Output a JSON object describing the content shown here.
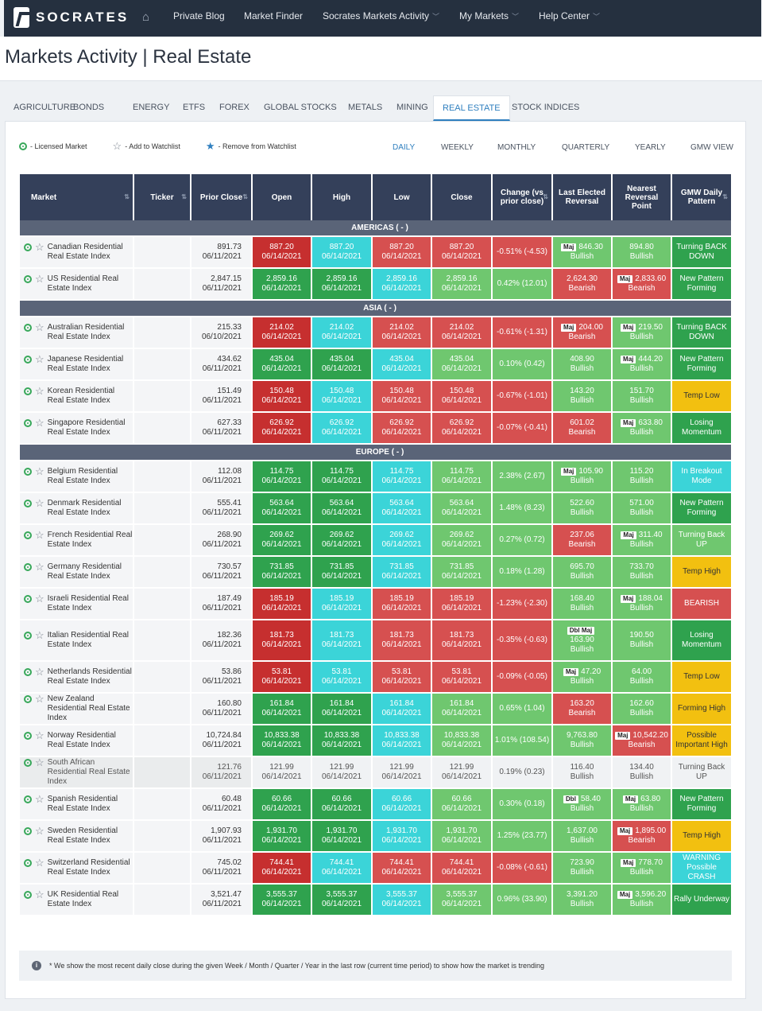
{
  "nav": {
    "brand": "SOCRATES",
    "items": [
      "Private Blog",
      "Market Finder",
      "Socrates Markets Activity",
      "My Markets",
      "Help Center"
    ]
  },
  "page_title": "Markets Activity | Real Estate",
  "tabs": [
    "AGRICULTURE",
    "BONDS",
    "ENERGY",
    "ETFS",
    "FOREX",
    "GLOBAL STOCKS",
    "METALS",
    "MINING",
    "REAL ESTATE",
    "STOCK INDICES"
  ],
  "active_tab": "REAL ESTATE",
  "legend": [
    "- Licensed Market",
    "- Add to Watchlist",
    "- Remove from Watchlist"
  ],
  "periods": [
    "DAILY",
    "WEEKLY",
    "MONTHLY",
    "QUARTERLY",
    "YEARLY",
    "GMW VIEW"
  ],
  "active_period": "DAILY",
  "columns": [
    "Market",
    "Ticker",
    "Prior Close",
    "Open",
    "High",
    "Low",
    "Close",
    "Change (vs prior close)",
    "Last Elected Reversal",
    "Nearest Reversal Point",
    "GMW Daily Pattern"
  ],
  "sections": [
    {
      "name": "AMERICAS ( - )",
      "rows": [
        {
          "m": "Canadian Residential Real Estate Index",
          "pc": "891.73",
          "pd": "06/11/2021",
          "o": [
            "887.20",
            "dr"
          ],
          "h": [
            "887.20",
            "c"
          ],
          "l": [
            "887.20",
            "r"
          ],
          "c": [
            "887.20",
            "r"
          ],
          "ch": [
            "-0.51% (-4.53)",
            "r"
          ],
          "ler": {
            "tag": "Maj",
            "v": "846.30",
            "s": "Bullish",
            "cls": "g"
          },
          "nrp": {
            "tag": "",
            "v": "894.80",
            "s": "Bullish",
            "cls": "g"
          },
          "pat": [
            "Turning BACK DOWN",
            "dg"
          ]
        },
        {
          "m": "US Residential Real Estate Index",
          "pc": "2,847.15",
          "pd": "06/11/2021",
          "o": [
            "2,859.16",
            "dg"
          ],
          "h": [
            "2,859.16",
            "dg"
          ],
          "l": [
            "2,859.16",
            "c"
          ],
          "c": [
            "2,859.16",
            "g"
          ],
          "ch": [
            "0.42% (12.01)",
            "g"
          ],
          "ler": {
            "tag": "",
            "v": "2,624.30",
            "s": "Bearish",
            "cls": "r"
          },
          "nrp": {
            "tag": "Maj",
            "v": "2,833.60",
            "s": "Bearish",
            "cls": "r"
          },
          "pat": [
            "New Pattern Forming",
            "dg"
          ]
        }
      ]
    },
    {
      "name": "ASIA ( - )",
      "rows": [
        {
          "m": "Australian Residential Real Estate Index",
          "pc": "215.33",
          "pd": "06/10/2021",
          "o": [
            "214.02",
            "dr"
          ],
          "h": [
            "214.02",
            "c"
          ],
          "l": [
            "214.02",
            "r"
          ],
          "c": [
            "214.02",
            "r"
          ],
          "ch": [
            "-0.61% (-1.31)",
            "r"
          ],
          "ler": {
            "tag": "Maj",
            "v": "204.00",
            "s": "Bearish",
            "cls": "r"
          },
          "nrp": {
            "tag": "Maj",
            "v": "219.50",
            "s": "Bullish",
            "cls": "g"
          },
          "pat": [
            "Turning BACK DOWN",
            "dg"
          ],
          "single": true
        },
        {
          "m": "Japanese Residential Real Estate Index",
          "pc": "434.62",
          "pd": "06/11/2021",
          "o": [
            "435.04",
            "dg"
          ],
          "h": [
            "435.04",
            "dg"
          ],
          "l": [
            "435.04",
            "c"
          ],
          "c": [
            "435.04",
            "g"
          ],
          "ch": [
            "0.10% (0.42)",
            "g"
          ],
          "ler": {
            "tag": "",
            "v": "408.90",
            "s": "Bullish",
            "cls": "g"
          },
          "nrp": {
            "tag": "Maj",
            "v": "444.20",
            "s": "Bullish",
            "cls": "g"
          },
          "pat": [
            "New Pattern Forming",
            "dg"
          ]
        },
        {
          "m": "Korean Residential Real Estate Index",
          "pc": "151.49",
          "pd": "06/11/2021",
          "o": [
            "150.48",
            "dr"
          ],
          "h": [
            "150.48",
            "c"
          ],
          "l": [
            "150.48",
            "r"
          ],
          "c": [
            "150.48",
            "r"
          ],
          "ch": [
            "-0.67% (-1.01)",
            "r"
          ],
          "ler": {
            "tag": "",
            "v": "143.20",
            "s": "Bullish",
            "cls": "g"
          },
          "nrp": {
            "tag": "",
            "v": "151.70",
            "s": "Bullish",
            "cls": "g"
          },
          "pat": [
            "Temp Low",
            "y"
          ]
        },
        {
          "m": "Singapore Residential Real Estate Index",
          "pc": "627.33",
          "pd": "06/11/2021",
          "o": [
            "626.92",
            "dr"
          ],
          "h": [
            "626.92",
            "c"
          ],
          "l": [
            "626.92",
            "r"
          ],
          "c": [
            "626.92",
            "r"
          ],
          "ch": [
            "-0.07% (-0.41)",
            "r"
          ],
          "ler": {
            "tag": "",
            "v": "601.02",
            "s": "Bearish",
            "cls": "r"
          },
          "nrp": {
            "tag": "Maj",
            "v": "633.80",
            "s": "Bullish",
            "cls": "g"
          },
          "pat": [
            "Losing Momentum",
            "dg"
          ]
        }
      ]
    },
    {
      "name": "EUROPE ( - )",
      "rows": [
        {
          "m": "Belgium Residential Real Estate Index",
          "pc": "112.08",
          "pd": "06/11/2021",
          "o": [
            "114.75",
            "dg"
          ],
          "h": [
            "114.75",
            "dg"
          ],
          "l": [
            "114.75",
            "c"
          ],
          "c": [
            "114.75",
            "g"
          ],
          "ch": [
            "2.38% (2.67)",
            "g"
          ],
          "ler": {
            "tag": "Maj",
            "v": "105.90",
            "s": "Bullish",
            "cls": "g"
          },
          "nrp": {
            "tag": "",
            "v": "115.20",
            "s": "Bullish",
            "cls": "g"
          },
          "pat": [
            "In Breakout Mode",
            "c"
          ]
        },
        {
          "m": "Denmark Residential Real Estate Index",
          "pc": "555.41",
          "pd": "06/11/2021",
          "o": [
            "563.64",
            "dg"
          ],
          "h": [
            "563.64",
            "dg"
          ],
          "l": [
            "563.64",
            "c"
          ],
          "c": [
            "563.64",
            "g"
          ],
          "ch": [
            "1.48% (8.23)",
            "g"
          ],
          "ler": {
            "tag": "",
            "v": "522.60",
            "s": "Bullish",
            "cls": "g"
          },
          "nrp": {
            "tag": "",
            "v": "571.00",
            "s": "Bullish",
            "cls": "g"
          },
          "pat": [
            "New Pattern Forming",
            "dg"
          ]
        },
        {
          "m": "French Residential Real Estate Index",
          "pc": "268.90",
          "pd": "06/11/2021",
          "o": [
            "269.62",
            "dg"
          ],
          "h": [
            "269.62",
            "dg"
          ],
          "l": [
            "269.62",
            "c"
          ],
          "c": [
            "269.62",
            "g"
          ],
          "ch": [
            "0.27% (0.72)",
            "g"
          ],
          "ler": {
            "tag": "",
            "v": "237.06",
            "s": "Bearish",
            "cls": "r"
          },
          "nrp": {
            "tag": "Maj",
            "v": "311.40",
            "s": "Bullish",
            "cls": "g"
          },
          "pat": [
            "Turning Back UP",
            "g"
          ]
        },
        {
          "m": "Germany Residential Real Estate Index",
          "pc": "730.57",
          "pd": "06/11/2021",
          "o": [
            "731.85",
            "dg"
          ],
          "h": [
            "731.85",
            "dg"
          ],
          "l": [
            "731.85",
            "c"
          ],
          "c": [
            "731.85",
            "g"
          ],
          "ch": [
            "0.18% (1.28)",
            "g"
          ],
          "ler": {
            "tag": "",
            "v": "695.70",
            "s": "Bullish",
            "cls": "g"
          },
          "nrp": {
            "tag": "",
            "v": "733.70",
            "s": "Bullish",
            "cls": "g"
          },
          "pat": [
            "Temp High",
            "y"
          ]
        },
        {
          "m": "Israeli Residential Real Estate Index",
          "pc": "187.49",
          "pd": "06/11/2021",
          "o": [
            "185.19",
            "dr"
          ],
          "h": [
            "185.19",
            "c"
          ],
          "l": [
            "185.19",
            "r"
          ],
          "c": [
            "185.19",
            "r"
          ],
          "ch": [
            "-1.23% (-2.30)",
            "r"
          ],
          "ler": {
            "tag": "",
            "v": "168.40",
            "s": "Bullish",
            "cls": "g"
          },
          "nrp": {
            "tag": "Maj",
            "v": "188.04",
            "s": "Bullish",
            "cls": "g"
          },
          "pat": [
            "BEARISH",
            "r"
          ]
        },
        {
          "m": "Italian Residential Real Estate Index",
          "pc": "182.36",
          "pd": "06/11/2021",
          "o": [
            "181.73",
            "dr"
          ],
          "h": [
            "181.73",
            "c"
          ],
          "l": [
            "181.73",
            "r"
          ],
          "c": [
            "181.73",
            "r"
          ],
          "ch": [
            "-0.35% (-0.63)",
            "r"
          ],
          "ler": {
            "tag": "Dbl Maj",
            "v": "163.90",
            "s": "Bullish",
            "cls": "g",
            "tall": true
          },
          "nrp": {
            "tag": "",
            "v": "190.50",
            "s": "Bullish",
            "cls": "g"
          },
          "pat": [
            "Losing Momentum",
            "dg"
          ]
        },
        {
          "m": "Netherlands Residential Real Estate Index",
          "pc": "53.86",
          "pd": "06/11/2021",
          "o": [
            "53.81",
            "dr"
          ],
          "h": [
            "53.81",
            "c"
          ],
          "l": [
            "53.81",
            "r"
          ],
          "c": [
            "53.81",
            "r"
          ],
          "ch": [
            "-0.09% (-0.05)",
            "r"
          ],
          "ler": {
            "tag": "Maj",
            "v": "47.20",
            "s": "Bullish",
            "cls": "g"
          },
          "nrp": {
            "tag": "",
            "v": "64.00",
            "s": "Bullish",
            "cls": "g"
          },
          "pat": [
            "Temp Low",
            "y"
          ]
        },
        {
          "m": "New Zealand Residential Real Estate Index",
          "pc": "160.80",
          "pd": "06/11/2021",
          "o": [
            "161.84",
            "dg"
          ],
          "h": [
            "161.84",
            "dg"
          ],
          "l": [
            "161.84",
            "c"
          ],
          "c": [
            "161.84",
            "g"
          ],
          "ch": [
            "0.65% (1.04)",
            "g"
          ],
          "ler": {
            "tag": "",
            "v": "163.20",
            "s": "Bearish",
            "cls": "r"
          },
          "nrp": {
            "tag": "",
            "v": "162.60",
            "s": "Bullish",
            "cls": "g"
          },
          "pat": [
            "Forming High",
            "y"
          ]
        },
        {
          "m": "Norway Residential Real Estate Index",
          "pc": "10,724.84",
          "pd": "06/11/2021",
          "o": [
            "10,833.38",
            "dg"
          ],
          "h": [
            "10,833.38",
            "dg"
          ],
          "l": [
            "10,833.38",
            "c"
          ],
          "c": [
            "10,833.38",
            "g"
          ],
          "ch": [
            "1.01% (108.54)",
            "g"
          ],
          "ler": {
            "tag": "",
            "v": "9,763.80",
            "s": "Bullish",
            "cls": "g"
          },
          "nrp": {
            "tag": "Maj",
            "v": "10,542.20",
            "s": "Bearish",
            "cls": "r"
          },
          "pat": [
            "Possible Important High",
            "y"
          ]
        },
        {
          "m": "South African Residential Real Estate Index",
          "pc": "121.76",
          "pd": "06/11/2021",
          "o": [
            "121.99",
            "gr"
          ],
          "h": [
            "121.99",
            "gr"
          ],
          "l": [
            "121.99",
            "gr"
          ],
          "c": [
            "121.99",
            "gr"
          ],
          "ch": [
            "0.19% (0.23)",
            "gr"
          ],
          "ler": {
            "tag": "",
            "v": "116.40",
            "s": "Bullish",
            "cls": "gr"
          },
          "nrp": {
            "tag": "",
            "v": "134.40",
            "s": "Bullish",
            "cls": "gr"
          },
          "pat": [
            "Turning Back UP",
            "gr"
          ],
          "grey": true
        },
        {
          "m": "Spanish Residential Real Estate Index",
          "pc": "60.48",
          "pd": "06/11/2021",
          "o": [
            "60.66",
            "dg"
          ],
          "h": [
            "60.66",
            "dg"
          ],
          "l": [
            "60.66",
            "c"
          ],
          "c": [
            "60.66",
            "g"
          ],
          "ch": [
            "0.30% (0.18)",
            "g"
          ],
          "ler": {
            "tag": "Dbl",
            "v": "58.40",
            "s": "Bullish",
            "cls": "g"
          },
          "nrp": {
            "tag": "Maj",
            "v": "63.80",
            "s": "Bullish",
            "cls": "g"
          },
          "pat": [
            "New Pattern Forming",
            "dg"
          ]
        },
        {
          "m": "Sweden Residential Real Estate Index",
          "pc": "1,907.93",
          "pd": "06/11/2021",
          "o": [
            "1,931.70",
            "dg"
          ],
          "h": [
            "1,931.70",
            "dg"
          ],
          "l": [
            "1,931.70",
            "c"
          ],
          "c": [
            "1,931.70",
            "g"
          ],
          "ch": [
            "1.25% (23.77)",
            "g"
          ],
          "ler": {
            "tag": "",
            "v": "1,637.00",
            "s": "Bullish",
            "cls": "g"
          },
          "nrp": {
            "tag": "Maj",
            "v": "1,895.00",
            "s": "Bearish",
            "cls": "r"
          },
          "pat": [
            "Temp High",
            "y"
          ]
        },
        {
          "m": "Switzerland Residential Real Estate Index",
          "pc": "745.02",
          "pd": "06/11/2021",
          "o": [
            "744.41",
            "dr"
          ],
          "h": [
            "744.41",
            "c"
          ],
          "l": [
            "744.41",
            "r"
          ],
          "c": [
            "744.41",
            "r"
          ],
          "ch": [
            "-0.08% (-0.61)",
            "r"
          ],
          "ler": {
            "tag": "",
            "v": "723.90",
            "s": "Bullish",
            "cls": "g"
          },
          "nrp": {
            "tag": "Maj",
            "v": "778.70",
            "s": "Bullish",
            "cls": "g"
          },
          "pat": [
            "WARNING Possible CRASH",
            "c"
          ]
        },
        {
          "m": "UK Residential Real Estate Index",
          "pc": "3,521.47",
          "pd": "06/11/2021",
          "o": [
            "3,555.37",
            "dg"
          ],
          "h": [
            "3,555.37",
            "dg"
          ],
          "l": [
            "3,555.37",
            "c"
          ],
          "c": [
            "3,555.37",
            "g"
          ],
          "ch": [
            "0.96% (33.90)",
            "g"
          ],
          "ler": {
            "tag": "",
            "v": "3,391.20",
            "s": "Bullish",
            "cls": "g"
          },
          "nrp": {
            "tag": "Maj",
            "v": "3,596.20",
            "s": "Bullish",
            "cls": "g"
          },
          "pat": [
            "Rally Underway",
            "dg"
          ]
        }
      ]
    }
  ],
  "cell_date": "06/14/2021",
  "note": "* We show the most recent daily close during the given Week / Month / Quarter / Year in the last row (current time period) to show how the market is trending"
}
